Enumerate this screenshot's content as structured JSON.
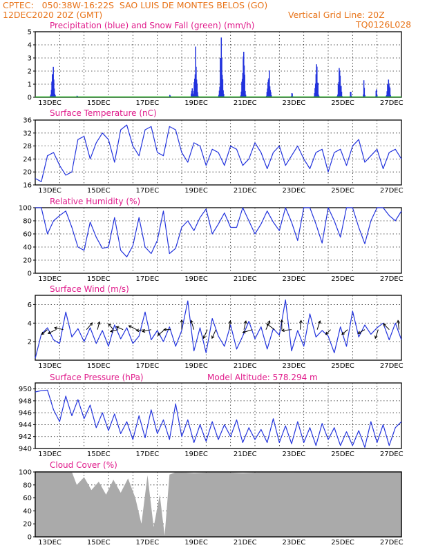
{
  "header": {
    "line1": "CPTEC:   050:38W-16:22S  SAO LUIS DE MONTES BELOS (GO)",
    "line2_left": "12DEC2020 20Z (GMT)",
    "line2_right": "Vertical Grid Line: 20Z",
    "line3_right": "TQ0126L028"
  },
  "colors": {
    "header": "#e8741a",
    "panel_title": "#e0198a",
    "line": "#2233dd",
    "snow": "#22aa22",
    "cloud": "#aaaaaa"
  },
  "x_axis": {
    "start": "12DEC2020 20Z",
    "ticks": [
      "13DEC",
      "15DEC",
      "17DEC",
      "19DEC",
      "21DEC",
      "23DEC",
      "25DEC",
      "27DEC"
    ]
  },
  "panels": {
    "precip": {
      "title": "Precipitation (blue) and Snow Fall (green) (mm/h)"
    },
    "temp": {
      "title": "Surface Temperature (nC)"
    },
    "rh": {
      "title": "Relative Humidity (%)"
    },
    "wind": {
      "title": "Surface Wind (m/s)"
    },
    "pres": {
      "title": "Surface Pressure (hPa)",
      "extra": "Model Altitude: 578.294  m"
    },
    "cloud": {
      "title": "Cloud Cover (%)"
    }
  },
  "chart_data": [
    {
      "type": "bar",
      "name": "precip",
      "ylim": [
        0,
        5
      ],
      "yticks": [
        0,
        1,
        2,
        3,
        4,
        5
      ],
      "bursts": [
        {
          "day": 0.7,
          "peak": 2.8
        },
        {
          "day": 1.7,
          "peak": 0.2
        },
        {
          "day": 5.5,
          "peak": 0.3
        },
        {
          "day": 6.4,
          "peak": 1.2
        },
        {
          "day": 6.55,
          "peak": 3.9
        },
        {
          "day": 7.6,
          "peak": 4.9
        },
        {
          "day": 8.5,
          "peak": 4.8
        },
        {
          "day": 9.55,
          "peak": 2.7
        },
        {
          "day": 10.5,
          "peak": 0.4
        },
        {
          "day": 11.5,
          "peak": 3.1
        },
        {
          "day": 12.45,
          "peak": 2.7
        },
        {
          "day": 12.9,
          "peak": 0.6
        },
        {
          "day": 13.45,
          "peak": 1.7
        },
        {
          "day": 13.95,
          "peak": 0.8
        },
        {
          "day": 14.45,
          "peak": 2.2
        }
      ]
    },
    {
      "type": "line",
      "name": "temp",
      "ylim": [
        16,
        36
      ],
      "yticks": [
        16,
        20,
        24,
        28,
        32,
        36
      ],
      "x": [
        0,
        0.25,
        0.5,
        0.75,
        1,
        1.25,
        1.5,
        1.75,
        2,
        2.25,
        2.5,
        2.75,
        3,
        3.25,
        3.5,
        3.75,
        4,
        4.25,
        4.5,
        4.75,
        5,
        5.25,
        5.5,
        5.75,
        6,
        6.25,
        6.5,
        6.75,
        7,
        7.25,
        7.5,
        7.75,
        8,
        8.25,
        8.5,
        8.75,
        9,
        9.25,
        9.5,
        9.75,
        10,
        10.25,
        10.5,
        10.75,
        11,
        11.25,
        11.5,
        11.75,
        12,
        12.25,
        12.5,
        12.75,
        13,
        13.25,
        13.5,
        13.75,
        14,
        14.25,
        14.5,
        14.75,
        15
      ],
      "values": [
        18,
        17,
        25,
        26,
        22,
        19,
        20,
        30,
        31,
        24,
        29,
        32,
        30,
        23,
        33,
        34.5,
        28,
        25,
        33,
        34,
        26,
        25,
        34,
        33,
        26,
        23,
        29,
        28,
        22,
        27,
        26,
        22,
        28,
        27,
        22,
        24,
        29,
        26,
        21,
        26,
        28,
        22,
        25,
        28,
        24,
        21,
        26,
        27,
        20,
        26,
        27,
        22,
        28,
        30,
        23,
        25,
        27,
        21,
        26,
        27,
        24
      ]
    },
    {
      "type": "line",
      "name": "rh",
      "ylim": [
        0,
        100
      ],
      "yticks": [
        0,
        20,
        40,
        60,
        80,
        100
      ],
      "x": [
        0,
        0.25,
        0.5,
        0.75,
        1,
        1.25,
        1.5,
        1.75,
        2,
        2.25,
        2.5,
        2.75,
        3,
        3.25,
        3.5,
        3.75,
        4,
        4.25,
        4.5,
        4.75,
        5,
        5.25,
        5.5,
        5.75,
        6,
        6.25,
        6.5,
        6.75,
        7,
        7.25,
        7.5,
        7.75,
        8,
        8.25,
        8.5,
        8.75,
        9,
        9.25,
        9.5,
        9.75,
        10,
        10.25,
        10.5,
        10.75,
        11,
        11.25,
        11.5,
        11.75,
        12,
        12.25,
        12.5,
        12.75,
        13,
        13.25,
        13.5,
        13.75,
        14,
        14.25,
        14.5,
        14.75,
        15
      ],
      "values": [
        100,
        100,
        60,
        80,
        88,
        95,
        70,
        40,
        35,
        78,
        55,
        38,
        40,
        85,
        35,
        25,
        42,
        85,
        40,
        30,
        50,
        95,
        30,
        38,
        70,
        80,
        65,
        85,
        98,
        60,
        75,
        92,
        70,
        70,
        100,
        80,
        60,
        75,
        95,
        78,
        65,
        100,
        78,
        50,
        100,
        100,
        75,
        46,
        100,
        80,
        55,
        100,
        100,
        70,
        45,
        80,
        100,
        100,
        88,
        80,
        95
      ]
    },
    {
      "type": "line",
      "name": "wind",
      "ylim": [
        0,
        7
      ],
      "yticks": [
        2,
        4,
        6
      ],
      "x": [
        0,
        0.25,
        0.5,
        0.75,
        1,
        1.25,
        1.5,
        1.75,
        2,
        2.25,
        2.5,
        2.75,
        3,
        3.25,
        3.5,
        3.75,
        4,
        4.25,
        4.5,
        4.75,
        5,
        5.25,
        5.5,
        5.75,
        6,
        6.25,
        6.5,
        6.75,
        7,
        7.25,
        7.5,
        7.75,
        8,
        8.25,
        8.5,
        8.75,
        9,
        9.25,
        9.5,
        9.75,
        10,
        10.25,
        10.5,
        10.75,
        11,
        11.25,
        11.5,
        11.75,
        12,
        12.25,
        12.5,
        12.75,
        13,
        13.25,
        13.5,
        13.75,
        14,
        14.25,
        14.5,
        14.75,
        15
      ],
      "values": [
        0.2,
        2.8,
        3.5,
        2.2,
        1.8,
        5.2,
        2.5,
        3.4,
        2,
        3.5,
        1.8,
        3.2,
        1.5,
        3.8,
        2.3,
        3.5,
        1.8,
        2.6,
        5.2,
        2.2,
        3.2,
        2,
        3.6,
        1.5,
        3.2,
        6.4,
        1,
        3.5,
        0.8,
        4.5,
        2.6,
        1.5,
        3.8,
        1.2,
        2.6,
        4.2,
        2.3,
        3.6,
        1.2,
        3.4,
        2.7,
        6.5,
        1,
        3.2,
        1.5,
        5,
        2.5,
        3.2,
        2.6,
        0.8,
        3.6,
        1.5,
        5.3,
        2.5,
        3.8,
        2.8,
        3.5,
        4,
        2.2,
        4,
        2.2
      ],
      "arrows": [
        {
          "day": 0.5,
          "dx": -0.6,
          "dy": 0.5
        },
        {
          "day": 0.85,
          "dx": -0.8,
          "dy": 0.4
        },
        {
          "day": 1.15,
          "dx": -0.9,
          "dy": -0.2
        },
        {
          "day": 2.1,
          "dx": 0.6,
          "dy": -0.7
        },
        {
          "day": 2.55,
          "dx": 0.2,
          "dy": -0.8
        },
        {
          "day": 3.2,
          "dx": -0.5,
          "dy": -0.6
        },
        {
          "day": 3.4,
          "dx": -0.8,
          "dy": 0.2
        },
        {
          "day": 3.6,
          "dx": -0.7,
          "dy": -0.3
        },
        {
          "day": 4.15,
          "dx": -0.8,
          "dy": -0.4
        },
        {
          "day": 4.5,
          "dx": -0.9,
          "dy": 0.1
        },
        {
          "day": 4.75,
          "dx": -0.9,
          "dy": 0.2
        },
        {
          "day": 5.3,
          "dx": -0.7,
          "dy": 0.6
        },
        {
          "day": 5.55,
          "dx": -0.7,
          "dy": 0
        },
        {
          "day": 6.0,
          "dx": 0,
          "dy": -1
        },
        {
          "day": 6.5,
          "dx": -0.3,
          "dy": -0.95
        },
        {
          "day": 7.05,
          "dx": -0.4,
          "dy": 0.9
        },
        {
          "day": 7.4,
          "dx": -0.4,
          "dy": 0.9
        },
        {
          "day": 7.95,
          "dx": 0.1,
          "dy": -0.9
        },
        {
          "day": 8.55,
          "dx": 0.2,
          "dy": -0.9
        },
        {
          "day": 8.9,
          "dx": -1,
          "dy": 0.3
        },
        {
          "day": 9.45,
          "dx": 0.4,
          "dy": -0.9
        },
        {
          "day": 9.8,
          "dx": -0.8,
          "dy": -0.6
        },
        {
          "day": 10.1,
          "dx": 0,
          "dy": -1
        },
        {
          "day": 10.5,
          "dx": -1,
          "dy": 0.1
        },
        {
          "day": 10.85,
          "dx": 0.1,
          "dy": -0.95
        },
        {
          "day": 11.55,
          "dx": 0.3,
          "dy": -0.9
        },
        {
          "day": 12.1,
          "dx": -0.5,
          "dy": 0.5
        },
        {
          "day": 12.8,
          "dx": -0.6,
          "dy": 0.5
        },
        {
          "day": 13.5,
          "dx": -0.7,
          "dy": 0.4
        },
        {
          "day": 14.05,
          "dx": -0.3,
          "dy": 0.9
        },
        {
          "day": 14.5,
          "dx": -0.6,
          "dy": -0.6
        },
        {
          "day": 14.9,
          "dx": -0.1,
          "dy": -0.95
        }
      ]
    },
    {
      "type": "line",
      "name": "pres",
      "ylim": [
        940,
        951
      ],
      "yticks": [
        940,
        942,
        944,
        946,
        948,
        950
      ],
      "x": [
        0,
        0.25,
        0.5,
        0.75,
        1,
        1.25,
        1.5,
        1.75,
        2,
        2.25,
        2.5,
        2.75,
        3,
        3.25,
        3.5,
        3.75,
        4,
        4.25,
        4.5,
        4.75,
        5,
        5.25,
        5.5,
        5.75,
        6,
        6.25,
        6.5,
        6.75,
        7,
        7.25,
        7.5,
        7.75,
        8,
        8.25,
        8.5,
        8.75,
        9,
        9.25,
        9.5,
        9.75,
        10,
        10.25,
        10.5,
        10.75,
        11,
        11.25,
        11.5,
        11.75,
        12,
        12.25,
        12.5,
        12.75,
        13,
        13.25,
        13.5,
        13.75,
        14,
        14.25,
        14.5,
        14.75,
        15
      ],
      "values": [
        949.5,
        949.7,
        949.8,
        946.5,
        944.5,
        948.8,
        945.5,
        948.2,
        945,
        947.3,
        943.5,
        946,
        943,
        945.8,
        942.5,
        944.5,
        941.5,
        945.5,
        941.8,
        946.5,
        942.5,
        944.8,
        941.5,
        947.5,
        942,
        944.8,
        941,
        944,
        941.2,
        944.5,
        941.5,
        944,
        942,
        944.8,
        941,
        943.5,
        941.5,
        943.2,
        941,
        945,
        941,
        943.8,
        940.8,
        944.5,
        941,
        943.5,
        940.5,
        944.2,
        941.5,
        943.5,
        940.5,
        942.8,
        940.5,
        943,
        940.2,
        944.5,
        941,
        944,
        940.5,
        943.5,
        944.5
      ]
    },
    {
      "type": "area",
      "name": "cloud",
      "ylim": [
        0,
        100
      ],
      "yticks": [
        0,
        20,
        40,
        60,
        80,
        100
      ],
      "x": [
        0,
        0.5,
        1,
        1.5,
        1.7,
        2.0,
        2.3,
        2.6,
        2.9,
        3.2,
        3.5,
        3.8,
        4.1,
        4.35,
        4.6,
        4.85,
        5.1,
        5.3,
        5.5,
        5.8,
        6.5,
        7.5,
        8.5,
        9.5,
        10.5,
        11.5,
        12.5,
        13.5,
        14.5,
        15
      ],
      "values": [
        100,
        100,
        100,
        100,
        80,
        92,
        72,
        85,
        65,
        88,
        68,
        90,
        60,
        20,
        95,
        15,
        65,
        2,
        96,
        100,
        98,
        100,
        98,
        100,
        99,
        100,
        100,
        99,
        100,
        100
      ]
    }
  ]
}
